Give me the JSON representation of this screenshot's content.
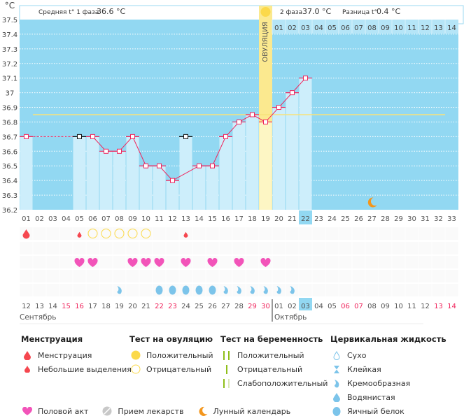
{
  "header": {
    "unit": "°C",
    "phase1_label": "Средняя t° 1 фаза",
    "phase1_value": "36.6 °C",
    "phase2_label": "2 фаза",
    "phase2_value": "37.0 °C",
    "diff_label": "Разница t°",
    "diff_value": "0.4 °C",
    "ovulation_label": "ОВУЛЯЦИЯ"
  },
  "chart_data": {
    "type": "line",
    "ylim": [
      36.2,
      37.5
    ],
    "yticks": [
      "36.2",
      "36.3",
      "36.4",
      "36.5",
      "36.6",
      "36.7",
      "36.8",
      "36.9",
      "37",
      "37.1",
      "37.2",
      "37.3",
      "37.4",
      "37.5"
    ],
    "cycle_days": [
      "01",
      "02",
      "03",
      "04",
      "05",
      "06",
      "07",
      "08",
      "09",
      "10",
      "11",
      "12",
      "13",
      "14",
      "15",
      "16",
      "17",
      "18",
      "19",
      "20",
      "21",
      "22",
      "23",
      "24",
      "25",
      "26",
      "27",
      "28",
      "29",
      "30",
      "31",
      "32",
      "33"
    ],
    "top_days": [
      "01",
      "02",
      "03",
      "04",
      "05",
      "06",
      "07",
      "08",
      "09",
      "10",
      "11",
      "12",
      "13",
      "14"
    ],
    "current_cycle_day": 22,
    "ovulation_day": 19,
    "coverline": 36.85,
    "temperatures": [
      36.7,
      null,
      null,
      null,
      36.7,
      36.7,
      36.6,
      36.6,
      36.7,
      36.5,
      36.5,
      36.4,
      36.7,
      36.5,
      36.5,
      36.7,
      36.8,
      36.85,
      36.8,
      36.9,
      37.0,
      37.1
    ],
    "excluded_days": [
      5,
      13
    ],
    "interpolated_days": [
      2,
      3,
      4
    ],
    "moon_day": 27,
    "colors": {
      "bg": "#92d8f2",
      "bar": "#cdeefb",
      "line": "#f0245c",
      "coverline": "#f8e27a",
      "ovulation": "#fbe98f"
    }
  },
  "events": {
    "menstruation": [
      1
    ],
    "spotting": [
      5,
      13
    ],
    "ovulation_test_negative": [
      6,
      7,
      8,
      9,
      10
    ],
    "intercourse": [
      5,
      6,
      9,
      10,
      11,
      13,
      15,
      17,
      19
    ],
    "fluid_creamy": [
      8,
      16,
      17,
      18,
      19,
      20,
      21
    ],
    "fluid_eggwhite": [
      11,
      12,
      13,
      14,
      15
    ]
  },
  "calendar": {
    "dates": [
      "12",
      "13",
      "14",
      "15",
      "16",
      "17",
      "18",
      "19",
      "20",
      "21",
      "22",
      "23",
      "24",
      "25",
      "26",
      "27",
      "28",
      "29",
      "30",
      "01",
      "02",
      "03",
      "04",
      "05",
      "06",
      "07",
      "08",
      "09",
      "10",
      "11",
      "12",
      "13",
      "14"
    ],
    "weekend_index": [
      3,
      4,
      10,
      11,
      17,
      18,
      24,
      25,
      31,
      32
    ],
    "today_index": 22,
    "month1": "Сентябрь",
    "month2": "Октябрь"
  },
  "legend": {
    "menstruation": {
      "title": "Менструация",
      "items": [
        "Менструация",
        "Небольшие выделения"
      ]
    },
    "ovulation_test": {
      "title": "Тест на овуляцию",
      "items": [
        "Положительный",
        "Отрицательный"
      ]
    },
    "pregnancy_test": {
      "title": "Тест на беременность",
      "items": [
        "Положительный",
        "Отрицательный",
        "Слабоположительный"
      ]
    },
    "fluid": {
      "title": "Цервикальная жидкость",
      "items": [
        "Сухо",
        "Клейкая",
        "Кремообразная",
        "Водянистая",
        "Яичный белок"
      ]
    },
    "other": [
      "Половой акт",
      "Прием лекарств",
      "Лунный календарь"
    ]
  }
}
